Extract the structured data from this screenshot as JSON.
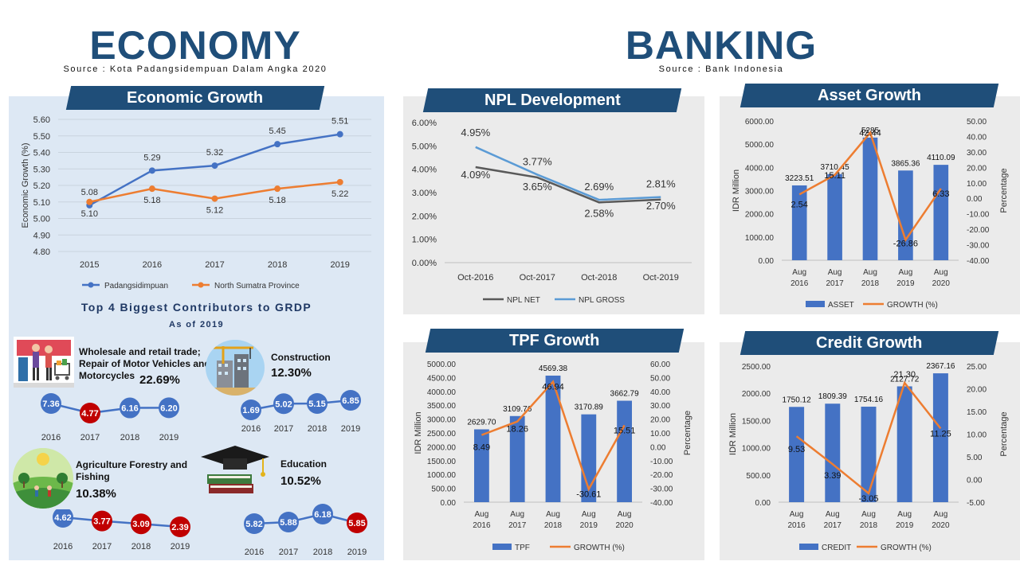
{
  "economy": {
    "title": "ECONOMY",
    "source": "Source : Kota Padangsidempuan Dalam Angka 2020"
  },
  "banking": {
    "title": "BANKING",
    "source": "Source : Bank Indonesia"
  },
  "colors": {
    "navy": "#1f4e79",
    "blue_series": "#4472c4",
    "orange_series": "#ed7d31",
    "dark_line": "#595959",
    "light_blue_line": "#5b9bd5",
    "red_dot": "#c00000",
    "econ_panel": "#dde8f4",
    "bank_panel": "#ebebeb"
  },
  "economic_growth": {
    "banner": "Economic Growth",
    "chart_data": {
      "type": "line",
      "title": "Economic Growth",
      "ylabel": "Economic Growth (%)",
      "categories": [
        "2015",
        "2016",
        "2017",
        "2018",
        "2019"
      ],
      "ylim": [
        4.8,
        5.6
      ],
      "yticks": [
        "4.80",
        "4.90",
        "5.00",
        "5.10",
        "5.20",
        "5.30",
        "5.40",
        "5.50",
        "5.60"
      ],
      "grid": true,
      "legend": "bottom",
      "series": [
        {
          "name": "Padangsidimpuan",
          "values": [
            5.08,
            5.29,
            5.32,
            5.45,
            5.51
          ],
          "labels": [
            "5.08",
            "5.29",
            "5.32",
            "5.45",
            "5.51"
          ]
        },
        {
          "name": "North Sumatra Province",
          "values": [
            5.1,
            5.18,
            5.12,
            5.18,
            5.22
          ],
          "labels": [
            "5.10",
            "5.18",
            "5.12",
            "5.18",
            "5.22"
          ]
        }
      ]
    }
  },
  "contributors": {
    "title": "Top 4 Biggest Contributors to GRDP",
    "subtitle": "As of 2019",
    "sectors": [
      {
        "name": "Wholesale and retail trade; Repair of Motor Vehicles and Motorcycles",
        "pct": "22.69%",
        "icon": "shopping-icon",
        "years": [
          "2016",
          "2017",
          "2018",
          "2019"
        ],
        "values": [
          7.36,
          4.77,
          6.16,
          6.2
        ],
        "labels": [
          "7.36",
          "4.77",
          "6.16",
          "6.20"
        ],
        "red": [
          false,
          true,
          false,
          false
        ]
      },
      {
        "name": "Construction",
        "pct": "12.30%",
        "icon": "construction-icon",
        "years": [
          "2016",
          "2017",
          "2018",
          "2019"
        ],
        "values": [
          1.69,
          5.02,
          5.15,
          6.85
        ],
        "labels": [
          "1.69",
          "5.02",
          "5.15",
          "6.85"
        ],
        "red": [
          false,
          false,
          false,
          false
        ]
      },
      {
        "name": "Agriculture Forestry and Fishing",
        "pct": "10.38%",
        "icon": "agriculture-icon",
        "years": [
          "2016",
          "2017",
          "2018",
          "2019"
        ],
        "values": [
          4.62,
          3.77,
          3.09,
          2.39
        ],
        "labels": [
          "4.62",
          "3.77",
          "3.09",
          "2.39"
        ],
        "red": [
          false,
          true,
          true,
          true
        ]
      },
      {
        "name": "Education",
        "pct": "10.52%",
        "icon": "education-icon",
        "years": [
          "2016",
          "2017",
          "2018",
          "2019"
        ],
        "values": [
          5.82,
          5.88,
          6.18,
          5.85
        ],
        "labels": [
          "5.82",
          "5.88",
          "6.18",
          "5.85"
        ],
        "red": [
          false,
          false,
          false,
          true
        ]
      }
    ]
  },
  "npl": {
    "banner": "NPL Development",
    "chart_data": {
      "type": "line",
      "title": "NPL Development",
      "categories": [
        "Oct-2016",
        "Oct-2017",
        "Oct-2018",
        "Oct-2019"
      ],
      "ylim": [
        0,
        6
      ],
      "yticks": [
        "0.00%",
        "1.00%",
        "2.00%",
        "3.00%",
        "4.00%",
        "5.00%",
        "6.00%"
      ],
      "grid": true,
      "legend": "bottom",
      "series": [
        {
          "name": "NPL NET",
          "values": [
            4.09,
            3.65,
            2.58,
            2.7
          ],
          "labels": [
            "4.09%",
            "3.65%",
            "2.58%",
            "2.70%"
          ]
        },
        {
          "name": "NPL GROSS",
          "values": [
            4.95,
            3.77,
            2.69,
            2.81
          ],
          "labels": [
            "4.95%",
            "3.77%",
            "2.69%",
            "2.81%"
          ]
        }
      ]
    }
  },
  "asset": {
    "banner": "Asset Growth",
    "chart_data": {
      "type": "bar",
      "title": "Asset Growth",
      "ylabel": "IDR Million",
      "y2label": "Percentage",
      "categories": [
        "Aug 2016",
        "Aug 2017",
        "Aug 2018",
        "Aug 2019",
        "Aug 2020"
      ],
      "ylim": [
        0,
        6000
      ],
      "yticks": [
        "0.00",
        "1000.00",
        "2000.00",
        "3000.00",
        "4000.00",
        "5000.00",
        "6000.00"
      ],
      "y2lim": [
        -40,
        50
      ],
      "y2ticks": [
        "-40.00",
        "-30.00",
        "-20.00",
        "-10.00",
        "0.00",
        "10.00",
        "20.00",
        "30.00",
        "40.00",
        "50.00"
      ],
      "legend": "bottom",
      "series": [
        {
          "name": "ASSET",
          "values": [
            3223.51,
            3710.45,
            5285,
            3865.36,
            4110.09
          ],
          "labels": [
            "3223.51",
            "3710.45",
            "5285",
            "3865.36",
            "4110.09"
          ]
        },
        {
          "name": "GROWTH (%)",
          "values": [
            2.54,
            15.11,
            42.44,
            -26.86,
            6.33
          ],
          "labels": [
            "2.54",
            "15.11",
            "42.44",
            "-26.86",
            "6.33"
          ]
        }
      ]
    }
  },
  "tpf": {
    "banner": "TPF Growth",
    "chart_data": {
      "type": "bar",
      "title": "TPF Growth",
      "ylabel": "IDR Million",
      "y2label": "Percentage",
      "categories": [
        "Aug 2016",
        "Aug 2017",
        "Aug 2018",
        "Aug 2019",
        "Aug 2020"
      ],
      "ylim": [
        0,
        5000
      ],
      "yticks": [
        "0.00",
        "500.00",
        "1000.00",
        "1500.00",
        "2000.00",
        "2500.00",
        "3000.00",
        "3500.00",
        "4000.00",
        "4500.00",
        "5000.00"
      ],
      "y2lim": [
        -40,
        60
      ],
      "y2ticks": [
        "-40.00",
        "-30.00",
        "-20.00",
        "-10.00",
        "0.00",
        "10.00",
        "20.00",
        "30.00",
        "40.00",
        "50.00",
        "60.00"
      ],
      "legend": "bottom",
      "series": [
        {
          "name": "TPF",
          "values": [
            2629.7,
            3109.76,
            4569.38,
            3170.89,
            3662.79
          ],
          "labels": [
            "2629.70",
            "3109.76",
            "4569.38",
            "3170.89",
            "3662.79"
          ]
        },
        {
          "name": "GROWTH (%)",
          "values": [
            8.49,
            18.26,
            46.94,
            -30.61,
            15.51
          ],
          "labels": [
            "8.49",
            "18.26",
            "46.94",
            "-30.61",
            "15.51"
          ]
        }
      ]
    }
  },
  "credit": {
    "banner": "Credit Growth",
    "chart_data": {
      "type": "bar",
      "title": "Credit Growth",
      "ylabel": "IDR Million",
      "y2label": "Percentage",
      "categories": [
        "Aug 2016",
        "Aug 2017",
        "Aug 2018",
        "Aug 2019",
        "Aug 2020"
      ],
      "ylim": [
        0,
        2500
      ],
      "yticks": [
        "0.00",
        "500.00",
        "1000.00",
        "1500.00",
        "2000.00",
        "2500.00"
      ],
      "y2lim": [
        -5,
        25
      ],
      "y2ticks": [
        "-5.00",
        "0.00",
        "5.00",
        "10.00",
        "15.00",
        "20.00",
        "25.00"
      ],
      "legend": "bottom",
      "series": [
        {
          "name": "CREDIT",
          "values": [
            1750.12,
            1809.39,
            1754.16,
            2127.72,
            2367.16
          ],
          "labels": [
            "1750.12",
            "1809.39",
            "1754.16",
            "2127.72",
            "2367.16"
          ]
        },
        {
          "name": "GROWTH (%)",
          "values": [
            9.53,
            3.39,
            -3.05,
            21.3,
            11.25
          ],
          "labels": [
            "9.53",
            "3.39",
            "-3.05",
            "21.30",
            "11.25"
          ]
        }
      ]
    }
  }
}
